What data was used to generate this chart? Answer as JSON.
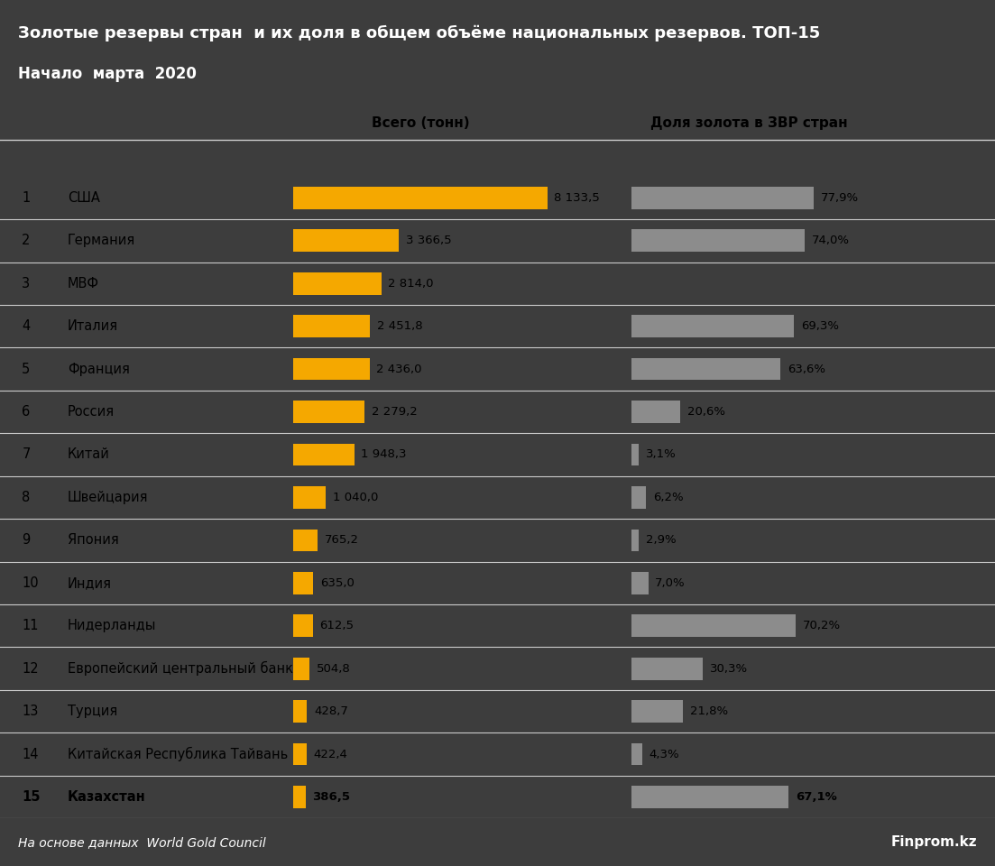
{
  "title_line1": "Золотые резервы стран  и их доля в общем объёме национальных резервов. ТОП-15",
  "title_line2": "Начало  марта  2020",
  "header_tons": "Всего (тонн)",
  "header_share": "Доля золота в ЗВР стран",
  "footer_left": "На основе данных  World Gold Council",
  "footer_right": "Finprom.kz",
  "countries": [
    {
      "rank": 1,
      "name": "США",
      "tons": 8133.5,
      "tons_label": "8 133,5",
      "share": 77.9,
      "share_label": "77,9%"
    },
    {
      "rank": 2,
      "name": "Германия",
      "tons": 3366.5,
      "tons_label": "3 366,5",
      "share": 74.0,
      "share_label": "74,0%"
    },
    {
      "rank": 3,
      "name": "МВФ",
      "tons": 2814.0,
      "tons_label": "2 814,0",
      "share": null,
      "share_label": null
    },
    {
      "rank": 4,
      "name": "Италия",
      "tons": 2451.8,
      "tons_label": "2 451,8",
      "share": 69.3,
      "share_label": "69,3%"
    },
    {
      "rank": 5,
      "name": "Франция",
      "tons": 2436.0,
      "tons_label": "2 436,0",
      "share": 63.6,
      "share_label": "63,6%"
    },
    {
      "rank": 6,
      "name": "Россия",
      "tons": 2279.2,
      "tons_label": "2 279,2",
      "share": 20.6,
      "share_label": "20,6%"
    },
    {
      "rank": 7,
      "name": "Китай",
      "tons": 1948.3,
      "tons_label": "1 948,3",
      "share": 3.1,
      "share_label": "3,1%"
    },
    {
      "rank": 8,
      "name": "Швейцария",
      "tons": 1040.0,
      "tons_label": "1 040,0",
      "share": 6.2,
      "share_label": "6,2%"
    },
    {
      "rank": 9,
      "name": "Япония",
      "tons": 765.2,
      "tons_label": "765,2",
      "share": 2.9,
      "share_label": "2,9%"
    },
    {
      "rank": 10,
      "name": "Индия",
      "tons": 635.0,
      "tons_label": "635,0",
      "share": 7.0,
      "share_label": "7,0%"
    },
    {
      "rank": 11,
      "name": "Нидерланды",
      "tons": 612.5,
      "tons_label": "612,5",
      "share": 70.2,
      "share_label": "70,2%"
    },
    {
      "rank": 12,
      "name": "Европейский центральный банк",
      "tons": 504.8,
      "tons_label": "504,8",
      "share": 30.3,
      "share_label": "30,3%"
    },
    {
      "rank": 13,
      "name": "Турция",
      "tons": 428.7,
      "tons_label": "428,7",
      "share": 21.8,
      "share_label": "21,8%"
    },
    {
      "rank": 14,
      "name": "Китайская Республика Тайвань",
      "tons": 422.4,
      "tons_label": "422,4",
      "share": 4.3,
      "share_label": "4,3%"
    },
    {
      "rank": 15,
      "name": "Казахстан",
      "tons": 386.5,
      "tons_label": "386,5",
      "share": 67.1,
      "share_label": "67,1%",
      "bold": true
    }
  ],
  "max_tons": 8133.5,
  "max_share": 100.0,
  "gold_color": "#F5A800",
  "gray_color": "#8C8C8C",
  "bg_color": "#FFFFFF",
  "header_bg": "#3D3D3D",
  "title_color": "#FFFFFF",
  "row_line_color": "#CCCCCC",
  "body_bg": "#FFFFFF"
}
